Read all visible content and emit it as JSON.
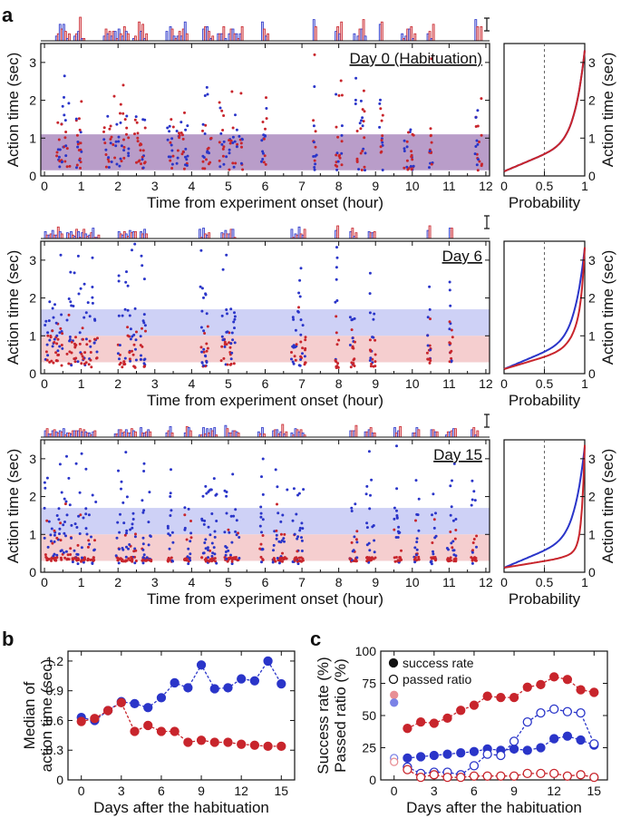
{
  "panels": [
    {
      "id": "a",
      "label": "a"
    },
    {
      "id": "b",
      "label": "b"
    },
    {
      "id": "c",
      "label": "c"
    }
  ],
  "colors": {
    "blue": "#2a35c9",
    "red": "#c8252c",
    "blue_light": "#7b82e6",
    "red_light": "#e88f95",
    "band_purple": "#ad8cc0",
    "band_blue": "#c9ccf5",
    "band_red": "#f4c9ca"
  },
  "chart_data": [
    {
      "id": "day0",
      "type": "scatter",
      "title": "Day 0 (Habituation)",
      "xlabel": "Time from experiment onset (hour)",
      "ylabel": "Action time (sec)",
      "xlim": [
        -0.1,
        12.1
      ],
      "ylim": [
        0,
        3.5
      ],
      "xticks": [
        "0",
        "1",
        "2",
        "3",
        "4",
        "5",
        "6",
        "7",
        "8",
        "9",
        "10",
        "11",
        "12"
      ],
      "yticks": [
        "0",
        "1",
        "2",
        "3"
      ],
      "bands": [
        {
          "from": 0.15,
          "to": 1.1,
          "color": "purple"
        }
      ],
      "clusters": [
        [
          0.3,
          0.7
        ],
        [
          0.85,
          1.05
        ],
        [
          1.6,
          2.3
        ],
        [
          2.45,
          2.75
        ],
        [
          3.3,
          3.9
        ],
        [
          4.3,
          4.55
        ],
        [
          4.75,
          5.4
        ],
        [
          5.9,
          6.05
        ],
        [
          7.3,
          7.4
        ],
        [
          7.9,
          8.1
        ],
        [
          8.45,
          8.75
        ],
        [
          9.1,
          9.2
        ],
        [
          9.75,
          10.05
        ],
        [
          10.45,
          10.55
        ],
        [
          11.7,
          11.9
        ]
      ],
      "intensity": 0.9,
      "cdf_red_shift": 0.0,
      "cdf_ylabel": "Action time (sec)",
      "cdf_xlabel": "Probability",
      "cdf_xticks": [
        "0",
        "0.5",
        "1"
      ],
      "cdf_yticks": [
        "0",
        "1",
        "2",
        "3"
      ]
    },
    {
      "id": "day6",
      "type": "scatter",
      "title": "Day 6",
      "xlabel": "Time from experiment onset (hour)",
      "ylabel": "Action time (sec)",
      "xlim": [
        -0.1,
        12.1
      ],
      "ylim": [
        0,
        3.5
      ],
      "xticks": [
        "0",
        "1",
        "2",
        "3",
        "4",
        "5",
        "6",
        "7",
        "8",
        "9",
        "10",
        "11",
        "12"
      ],
      "yticks": [
        "0",
        "1",
        "2",
        "3"
      ],
      "bands": [
        {
          "from": 1.0,
          "to": 1.7,
          "color": "blue"
        },
        {
          "from": 0.3,
          "to": 1.0,
          "color": "red"
        }
      ],
      "clusters": [
        [
          0.0,
          0.5
        ],
        [
          0.6,
          1.45
        ],
        [
          2.0,
          2.5
        ],
        [
          2.6,
          2.75
        ],
        [
          4.2,
          4.45
        ],
        [
          4.8,
          5.2
        ],
        [
          6.7,
          7.1
        ],
        [
          7.9,
          8.0
        ],
        [
          8.3,
          8.45
        ],
        [
          8.85,
          9.0
        ],
        [
          10.4,
          10.5
        ],
        [
          11.0,
          11.1
        ]
      ],
      "intensity": 1.3,
      "cdf_red_shift": 0.4,
      "cdf_ylabel": "Action time (sec)",
      "cdf_xlabel": "Probability",
      "cdf_xticks": [
        "0",
        "0.5",
        "1"
      ],
      "cdf_yticks": [
        "0",
        "1",
        "2",
        "3"
      ]
    },
    {
      "id": "day15",
      "type": "scatter",
      "title": "Day 15",
      "xlabel": "Time from experiment onset (hour)",
      "ylabel": "Action time (sec)",
      "xlim": [
        -0.1,
        12.1
      ],
      "ylim": [
        0,
        3.5
      ],
      "xticks": [
        "0",
        "1",
        "2",
        "3",
        "4",
        "5",
        "6",
        "7",
        "8",
        "9",
        "10",
        "11",
        "12"
      ],
      "yticks": [
        "0",
        "1",
        "2",
        "3"
      ],
      "bands": [
        {
          "from": 1.0,
          "to": 1.7,
          "color": "blue"
        },
        {
          "from": 0.3,
          "to": 1.0,
          "color": "red"
        }
      ],
      "clusters": [
        [
          0.0,
          1.4
        ],
        [
          1.95,
          2.5
        ],
        [
          2.65,
          2.9
        ],
        [
          3.35,
          3.5
        ],
        [
          3.8,
          4.0
        ],
        [
          4.25,
          4.7
        ],
        [
          4.9,
          5.3
        ],
        [
          5.85,
          5.95
        ],
        [
          6.2,
          6.6
        ],
        [
          6.75,
          7.05
        ],
        [
          8.3,
          8.5
        ],
        [
          8.75,
          9.0
        ],
        [
          9.5,
          9.7
        ],
        [
          10.05,
          10.2
        ],
        [
          10.5,
          10.65
        ],
        [
          10.95,
          11.2
        ],
        [
          11.6,
          11.75
        ]
      ],
      "intensity": 1.6,
      "cdf_red_shift": 0.85,
      "cdf_ylabel": "Action time (sec)",
      "cdf_xlabel": "Probability",
      "cdf_xticks": [
        "0",
        "0.5",
        "1"
      ],
      "cdf_yticks": [
        "0",
        "1",
        "2",
        "3"
      ]
    },
    {
      "id": "median",
      "type": "line",
      "xlabel": "Days after the habituation",
      "ylabel_lines": [
        "Median of",
        "action time (sec)"
      ],
      "xlim": [
        -1,
        16
      ],
      "ylim": [
        0,
        1.3
      ],
      "xticks": [
        0,
        3,
        6,
        9,
        12,
        15
      ],
      "yticks": [
        0,
        0.3,
        0.6,
        0.9,
        1.2
      ],
      "ytick_labels": [
        "0",
        "0.3",
        "0.6",
        "0.9",
        "1.2"
      ],
      "series": [
        {
          "color": "blue",
          "x": [
            0,
            1,
            2,
            3,
            4,
            5,
            6,
            7,
            8,
            9,
            10,
            11,
            12,
            13,
            14,
            15
          ],
          "y": [
            0.63,
            0.6,
            0.7,
            0.79,
            0.77,
            0.73,
            0.83,
            0.98,
            0.93,
            1.16,
            0.92,
            0.93,
            1.02,
            1.0,
            1.2,
            0.97
          ]
        },
        {
          "color": "red",
          "x": [
            0,
            1,
            2,
            3,
            4,
            5,
            6,
            7,
            8,
            9,
            10,
            11,
            12,
            13,
            14,
            15
          ],
          "y": [
            0.59,
            0.62,
            0.7,
            0.78,
            0.49,
            0.55,
            0.49,
            0.49,
            0.38,
            0.4,
            0.38,
            0.38,
            0.36,
            0.35,
            0.34,
            0.34
          ]
        }
      ]
    },
    {
      "id": "success",
      "type": "line",
      "xlabel": "Days after the habituation",
      "ylabel_lines": [
        "Success rate (%)",
        "Passed ratio (%)"
      ],
      "xlim": [
        -1,
        16
      ],
      "ylim": [
        0,
        100
      ],
      "xticks": [
        0,
        3,
        6,
        9,
        12,
        15
      ],
      "yticks": [
        0,
        25,
        50,
        75,
        100
      ],
      "ytick_labels": [
        "0",
        "25",
        "50",
        "75",
        "100"
      ],
      "legend": [
        {
          "marker": "filled",
          "label": "success rate"
        },
        {
          "marker": "open",
          "label": "passed ratio"
        }
      ],
      "series": [
        {
          "color": "red",
          "marker": "filled",
          "x": [
            1,
            2,
            3,
            4,
            5,
            6,
            7,
            8,
            9,
            10,
            11,
            12,
            13,
            14,
            15
          ],
          "y": [
            40,
            45,
            44,
            48,
            54,
            58,
            65,
            64,
            64,
            72,
            74,
            80,
            78,
            70,
            68
          ]
        },
        {
          "color": "blue",
          "marker": "filled",
          "x": [
            1,
            2,
            3,
            4,
            5,
            6,
            7,
            8,
            9,
            10,
            11,
            12,
            13,
            14,
            15
          ],
          "y": [
            17,
            18,
            19,
            20,
            21,
            22,
            24,
            23,
            24,
            23,
            25,
            32,
            34,
            31,
            27
          ]
        },
        {
          "color": "blue",
          "marker": "open",
          "x": [
            1,
            2,
            3,
            4,
            5,
            6,
            7,
            8,
            9,
            10,
            11,
            12,
            13,
            14,
            15
          ],
          "y": [
            10,
            5,
            6,
            6,
            4,
            11,
            20,
            19,
            30,
            45,
            52,
            55,
            53,
            52,
            28
          ]
        },
        {
          "color": "red",
          "marker": "open",
          "x": [
            1,
            2,
            3,
            4,
            5,
            6,
            7,
            8,
            9,
            10,
            11,
            12,
            13,
            14,
            15
          ],
          "y": [
            8,
            2,
            4,
            2,
            2,
            3,
            3,
            3,
            3,
            5,
            5,
            5,
            3,
            4,
            2
          ]
        }
      ],
      "day0_points": [
        {
          "color": "red_light",
          "marker": "filled",
          "y": 66
        },
        {
          "color": "blue_light",
          "marker": "filled",
          "y": 60
        },
        {
          "color": "blue_light",
          "marker": "open",
          "y": 17
        },
        {
          "color": "red_light",
          "marker": "open",
          "y": 14
        }
      ]
    }
  ]
}
